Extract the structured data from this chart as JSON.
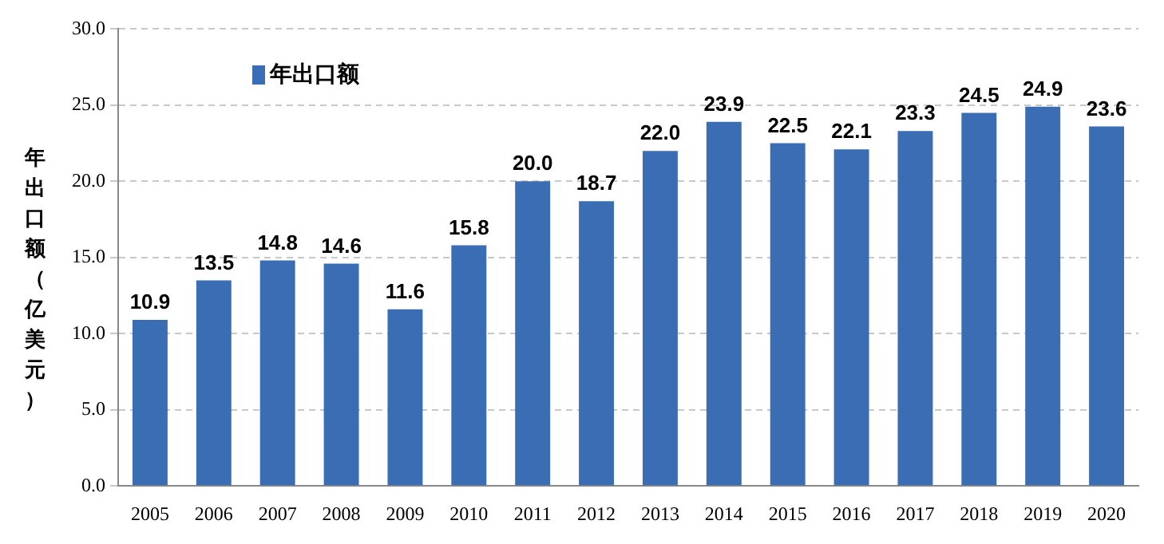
{
  "chart_data": {
    "type": "bar",
    "ylabel": "年出口额（亿美元）",
    "categories": [
      "2005",
      "2006",
      "2007",
      "2008",
      "2009",
      "2010",
      "2011",
      "2012",
      "2013",
      "2014",
      "2015",
      "2016",
      "2017",
      "2018",
      "2019",
      "2020"
    ],
    "series": [
      {
        "name": "年出口额",
        "color": "#3a6db3",
        "values": [
          10.9,
          13.5,
          14.8,
          14.6,
          11.6,
          15.8,
          20.0,
          18.7,
          22.0,
          23.9,
          22.5,
          22.1,
          23.3,
          24.5,
          24.9,
          23.6
        ],
        "value_labels": [
          "10.9",
          "13.5",
          "14.8",
          "14.6",
          "11.6",
          "15.8",
          "20.0",
          "18.7",
          "22.0",
          "23.9",
          "22.5",
          "22.1",
          "23.3",
          "24.5",
          "24.9",
          "23.6"
        ]
      }
    ],
    "ylim": [
      0,
      30
    ],
    "yticks": [
      {
        "value": 0,
        "label": "0.0"
      },
      {
        "value": 5,
        "label": "5.0"
      },
      {
        "value": 10,
        "label": "10.0"
      },
      {
        "value": 15,
        "label": "15.0"
      },
      {
        "value": 20,
        "label": "20.0"
      },
      {
        "value": 25,
        "label": "25.0"
      },
      {
        "value": 30,
        "label": "30.0"
      }
    ],
    "grid": "y",
    "legend": "top left"
  }
}
